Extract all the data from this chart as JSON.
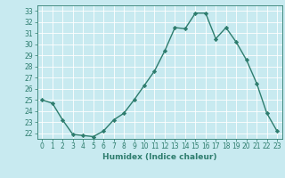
{
  "x": [
    0,
    1,
    2,
    3,
    4,
    5,
    6,
    7,
    8,
    9,
    10,
    11,
    12,
    13,
    14,
    15,
    16,
    17,
    18,
    19,
    20,
    21,
    22,
    23
  ],
  "y": [
    25.0,
    24.7,
    23.2,
    21.9,
    21.8,
    21.7,
    22.2,
    23.2,
    23.8,
    25.0,
    26.3,
    27.6,
    29.4,
    31.5,
    31.4,
    32.8,
    32.8,
    30.5,
    31.5,
    30.2,
    28.6,
    26.5,
    23.8,
    22.2
  ],
  "line_color": "#2e7d6e",
  "bg_color": "#c8eaf0",
  "grid_color": "#ffffff",
  "tick_color": "#2e7d6e",
  "label_color": "#2e7d6e",
  "xlabel": "Humidex (Indice chaleur)",
  "ylim": [
    21.5,
    33.5
  ],
  "yticks": [
    22,
    23,
    24,
    25,
    26,
    27,
    28,
    29,
    30,
    31,
    32,
    33
  ],
  "xticks": [
    0,
    1,
    2,
    3,
    4,
    5,
    6,
    7,
    8,
    9,
    10,
    11,
    12,
    13,
    14,
    15,
    16,
    17,
    18,
    19,
    20,
    21,
    22,
    23
  ],
  "marker": "D",
  "marker_size": 2.2,
  "linewidth": 1.0,
  "title_fontsize": 7,
  "axis_fontsize": 5.5,
  "xlabel_fontsize": 6.5
}
